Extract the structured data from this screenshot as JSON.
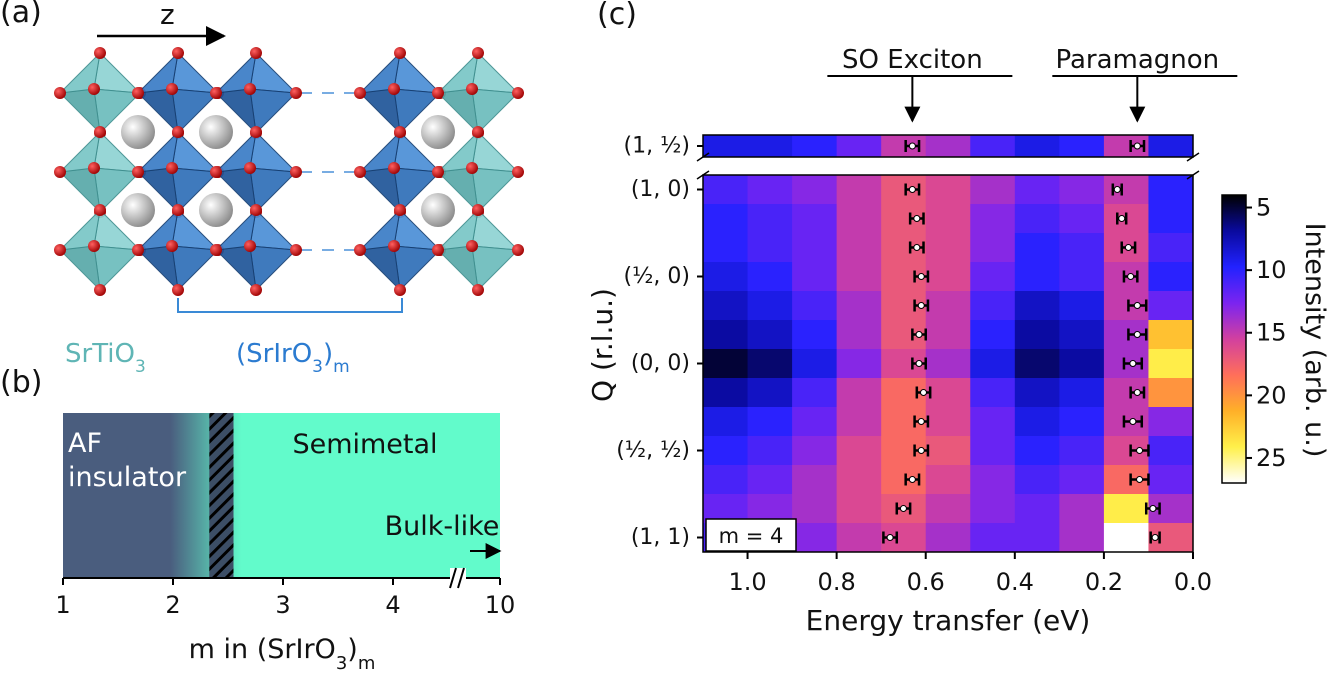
{
  "panel_a": {
    "label": "(a)",
    "axis": "z",
    "layer_a": [
      "SrTiO",
      "3"
    ],
    "layer_b": [
      "(SrIrO",
      "3",
      ")",
      "m"
    ]
  },
  "chart_data": [
    {
      "type": "phase",
      "label": "(b)",
      "xlim": [
        1,
        10
      ],
      "xticks": [
        1,
        2,
        3,
        4,
        10
      ],
      "xlabel": [
        "m in (SrIrO",
        "3",
        ")",
        "m"
      ],
      "boundary": [
        2.33,
        2.55
      ],
      "regions": [
        {
          "lines": [
            "AF",
            "insulator"
          ],
          "color": "#4a5d7e"
        },
        {
          "lines": [
            "Semimetal"
          ],
          "color": "#62fbcb"
        }
      ],
      "annotation": "Bulk-like"
    },
    {
      "type": "heatmap",
      "label": "(c)",
      "xlabel": "Energy transfer (eV)",
      "ylabel": "Q (r.l.u.)",
      "xlim": [
        1.1,
        0.0
      ],
      "xticks": [
        {
          "value": 1,
          "label": "1.0"
        },
        0.8,
        0.6,
        0.4,
        0.2,
        {
          "value": 0,
          "label": "0.0"
        }
      ],
      "x_edges": [
        1.1,
        1,
        0.9,
        0.8,
        0.7,
        0.6,
        0.5,
        0.4,
        0.3,
        0.2,
        0.1,
        0
      ],
      "row_labels": [
        "(1, ½)",
        "(1, 0)",
        null,
        null,
        "(½, 0)",
        null,
        null,
        "(0, 0)",
        null,
        null,
        "(½, ½)",
        null,
        null,
        "(1, 1)"
      ],
      "values": [
        [
          9,
          9,
          10,
          12,
          15,
          14,
          11,
          9,
          10,
          15,
          9
        ],
        [
          11,
          12,
          13,
          15,
          17,
          16,
          14,
          12,
          13,
          15,
          10
        ],
        [
          10,
          11,
          12,
          15,
          17,
          16,
          13,
          11,
          12,
          16,
          10
        ],
        [
          10,
          11,
          12,
          15,
          17,
          16,
          13,
          10,
          11,
          16,
          11
        ],
        [
          9,
          10,
          12,
          15,
          17,
          16,
          12,
          10,
          11,
          15,
          10
        ],
        [
          8,
          9,
          11,
          14,
          17,
          15,
          11,
          8,
          9,
          15,
          12
        ],
        [
          7,
          8,
          10,
          14,
          17,
          15,
          10,
          7,
          8,
          14,
          22
        ],
        [
          5,
          6,
          9,
          13,
          16,
          14,
          9,
          6,
          7,
          14,
          24
        ],
        [
          7,
          8,
          11,
          15,
          18,
          16,
          11,
          8,
          9,
          15,
          20
        ],
        [
          9,
          10,
          12,
          15,
          18,
          16,
          12,
          9,
          10,
          15,
          13
        ],
        [
          10,
          11,
          13,
          16,
          18,
          17,
          12,
          10,
          11,
          16,
          11
        ],
        [
          11,
          12,
          14,
          16,
          18,
          16,
          13,
          11,
          12,
          18,
          12
        ],
        [
          12,
          13,
          14,
          16,
          17,
          15,
          13,
          12,
          14,
          24,
          14
        ],
        [
          11,
          12,
          13,
          15,
          16,
          14,
          12,
          12,
          14,
          27,
          17
        ]
      ],
      "series": [
        {
          "name": "SO Exciton",
          "values": [
            0.63,
            0.63,
            0.62,
            0.62,
            0.61,
            0.61,
            0.615,
            0.615,
            0.605,
            0.61,
            0.61,
            0.63,
            0.65,
            0.68
          ],
          "errors": [
            0.015,
            0.015,
            0.015,
            0.015,
            0.015,
            0.015,
            0.015,
            0.015,
            0.015,
            0.015,
            0.015,
            0.015,
            0.015,
            0.015
          ]
        },
        {
          "name": "Paramagnon",
          "values": [
            0.125,
            0.17,
            0.16,
            0.145,
            0.14,
            0.125,
            0.125,
            0.135,
            0.125,
            0.135,
            0.12,
            0.12,
            0.09,
            0.085
          ],
          "errors": [
            0.015,
            0.01,
            0.01,
            0.015,
            0.015,
            0.02,
            0.02,
            0.02,
            0.015,
            0.02,
            0.02,
            0.02,
            0.015,
            0.01
          ]
        }
      ],
      "clim": [
        4,
        27
      ],
      "cticks": [
        5,
        10,
        15,
        20,
        25
      ],
      "colorbar_label": "Intensity (arb. u.)",
      "colormap": [
        "#000000",
        "#0a0a9e",
        "#2222ff",
        "#7b24f0",
        "#d2409f",
        "#ff6f5a",
        "#ffb028",
        "#fff04a",
        "#ffffff"
      ],
      "inset": "m = 4"
    }
  ]
}
